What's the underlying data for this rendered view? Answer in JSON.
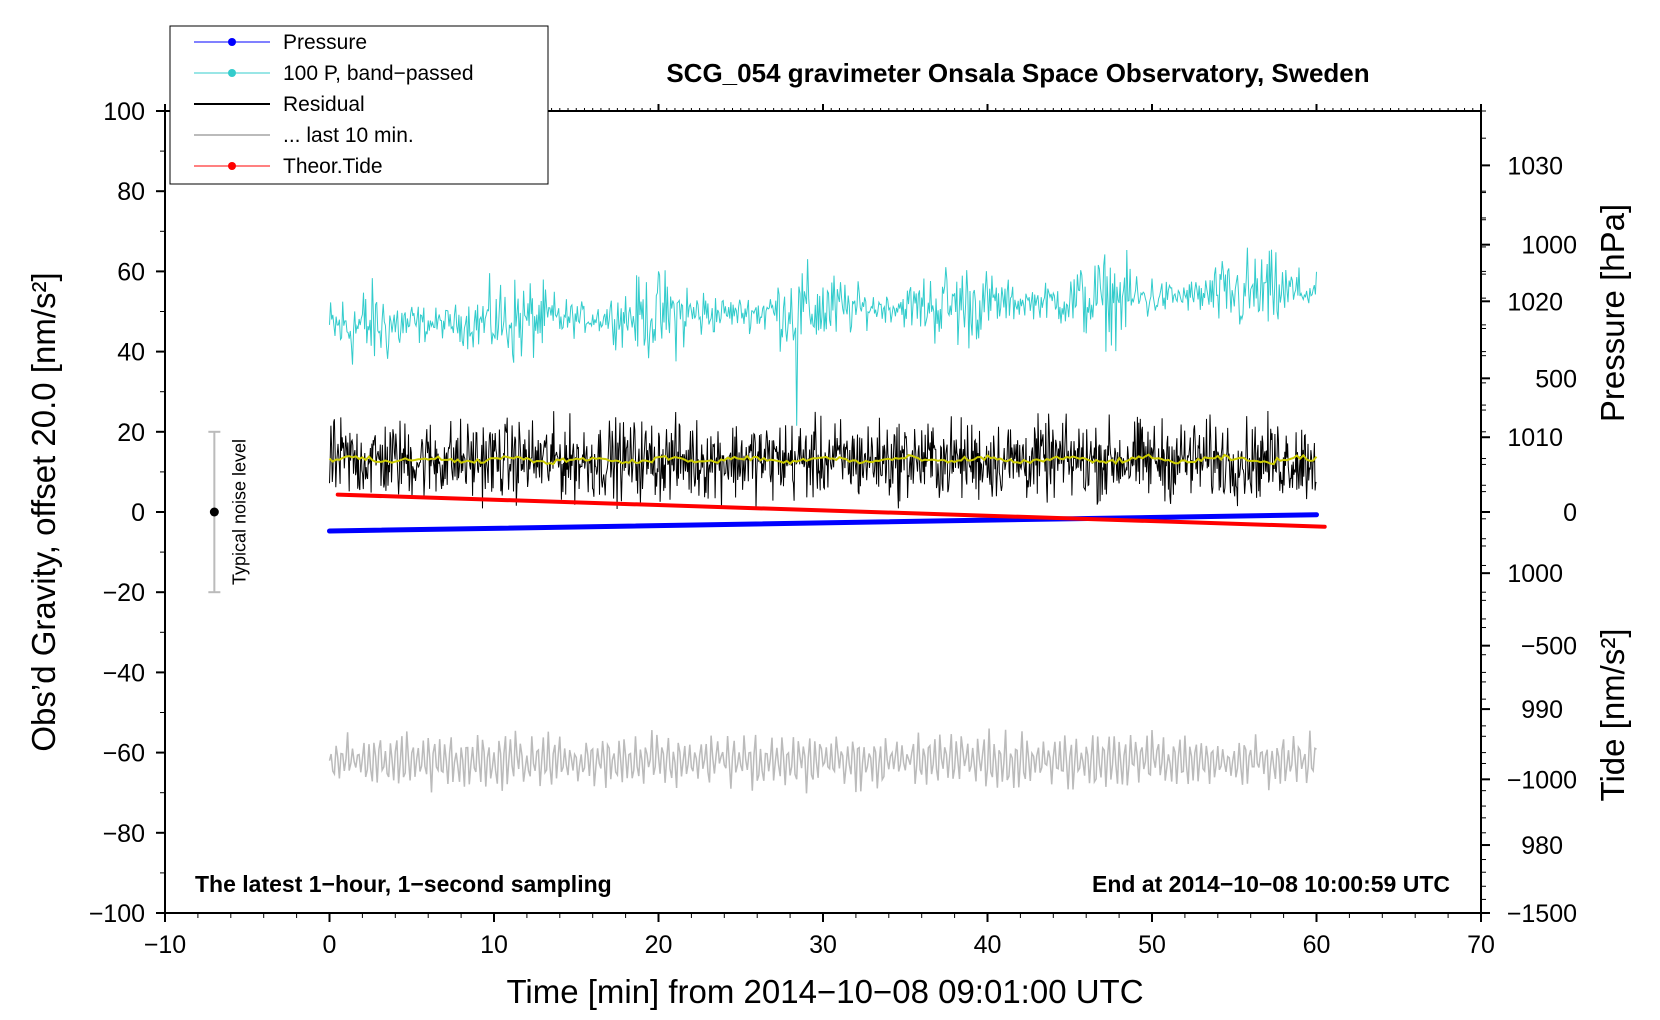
{
  "chart_data": {
    "type": "line",
    "title": "SCG_054 gravimeter Onsala Space Observatory, Sweden",
    "xlabel": "Time [min] from 2014−10−08 09:01:00 UTC",
    "ylabel": "Obs’d Gravity, offset 20.0 [nm/s²]",
    "y2label": "Pressure [hPa]",
    "y3label": "Tide [nm/s²]",
    "xlim": [
      -10,
      70
    ],
    "ylim": [
      -100,
      100
    ],
    "pressure_lim": [
      975,
      1034
    ],
    "tide_lim": [
      -1500,
      1500
    ],
    "x_ticks": [
      "−10",
      "0",
      "10",
      "20",
      "30",
      "40",
      "50",
      "60",
      "70"
    ],
    "x_tick_values": [
      -10,
      0,
      10,
      20,
      30,
      40,
      50,
      60,
      70
    ],
    "y_ticks": [
      "100",
      "80",
      "60",
      "40",
      "20",
      "0",
      "−20",
      "−40",
      "−60",
      "−80",
      "−100"
    ],
    "y_tick_values": [
      100,
      80,
      60,
      40,
      20,
      0,
      -20,
      -40,
      -60,
      -80,
      -100
    ],
    "pressure_ticks": [
      "1030",
      "1020",
      "1010",
      "1000",
      "990",
      "980"
    ],
    "pressure_tick_values": [
      1030,
      1020,
      1010,
      1000,
      990,
      980
    ],
    "tide_ticks": [
      "1000",
      "500",
      "0",
      "−500",
      "−1000",
      "−1500"
    ],
    "tide_tick_values": [
      1000,
      500,
      0,
      -500,
      -1000,
      -1500
    ],
    "legend": [
      {
        "label": "Pressure",
        "color": "#0000ff",
        "marker": true
      },
      {
        "label": "100 P, band−passed",
        "color": "#33cccc",
        "marker": true
      },
      {
        "label": "Residual",
        "color": "#000000",
        "marker": false
      },
      {
        "label": "... last 10 min.",
        "color": "#bbbbbb",
        "marker": false
      },
      {
        "label": "Theor.Tide",
        "color": "#ff0000",
        "marker": true
      }
    ],
    "annotations": {
      "left": "The latest 1−hour, 1−second sampling",
      "right": "End at 2014−10−08 10:00:59 UTC",
      "noise": "Typical noise level"
    },
    "noise_bar": {
      "x": -7,
      "center": 0,
      "low": -20,
      "high": 20
    },
    "series": [
      {
        "name": "Pressure",
        "axis": "pressure",
        "color": "#0000ff",
        "start": {
          "x": 0,
          "y": 1003.1
        },
        "end": {
          "x": 60,
          "y": 1004.3
        }
      },
      {
        "name": "100 P, band−passed",
        "axis": "gravity",
        "color": "#33cccc",
        "start": {
          "x": 0,
          "y": 46
        },
        "end": {
          "x": 60,
          "y": 55
        },
        "amplitude": 9,
        "min": 21.5,
        "max": 68.5
      },
      {
        "name": "Residual",
        "axis": "gravity",
        "color": "#000000",
        "mean": 13,
        "amplitude": 12,
        "min": -1,
        "max": 26
      },
      {
        "name": "Residual smoothed",
        "axis": "gravity",
        "color": "#cccc00",
        "mean": 13
      },
      {
        "name": "... last 10 min.",
        "axis": "gravity",
        "color": "#bbbbbb",
        "mean": -62,
        "amplitude": 6,
        "min": -72,
        "max": -51
      },
      {
        "name": "Theor.Tide",
        "axis": "tide",
        "color": "#ff0000",
        "start": {
          "x": 0.5,
          "y": 65
        },
        "end": {
          "x": 60.5,
          "y": -55
        }
      }
    ]
  }
}
